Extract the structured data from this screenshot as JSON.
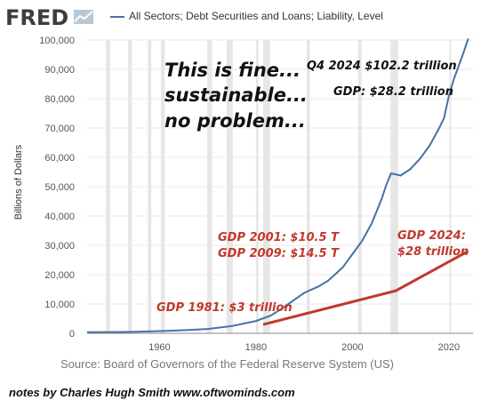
{
  "header": {
    "logo_text": "FRED",
    "legend_label": "All Sectors; Debt Securities and Loans; Liability, Level",
    "colors": {
      "debt_line": "#4572a7",
      "gdp_line": "#c0392b",
      "recession": "#e6e6e6"
    }
  },
  "source": "Source: Board of Governors of the Federal Reserve System (US)",
  "notes": "notes by Charles Hugh Smith     www.oftwominds.com",
  "annotations": {
    "main_line1": "This is fine...",
    "main_line2": "sustainable...",
    "main_line3": "no problem...",
    "q4_label": "Q4 2024   $102.2 trillion",
    "gdp_label": "GDP: $28.2 trillion",
    "gdp2001": "GDP 2001: $10.5 T",
    "gdp2009": "GDP 2009: $14.5 T",
    "gdp2024_line1": "GDP 2024:",
    "gdp2024_line2": "$28 trillion",
    "gdp1981": "GDP 1981: $3 trillion"
  },
  "chart_data": {
    "type": "line",
    "title": "",
    "xlabel": "",
    "ylabel": "Billions of Dollars",
    "xlim": [
      1945,
      2025
    ],
    "ylim": [
      0,
      100000
    ],
    "x_ticks": [
      1960,
      1980,
      2000,
      2020
    ],
    "y_ticks": [
      0,
      10000,
      20000,
      30000,
      40000,
      50000,
      60000,
      70000,
      80000,
      90000,
      100000
    ],
    "y_tick_labels": [
      "0",
      "10,000",
      "20,000",
      "30,000",
      "40,000",
      "50,000",
      "60,000",
      "70,000",
      "80,000",
      "90,000",
      "100,000"
    ],
    "recessions": [
      [
        1948.9,
        1949.8
      ],
      [
        1953.5,
        1954.3
      ],
      [
        1957.6,
        1958.3
      ],
      [
        1960.3,
        1961.1
      ],
      [
        1969.9,
        1970.9
      ],
      [
        1973.9,
        1975.2
      ],
      [
        1980.0,
        1980.5
      ],
      [
        1981.5,
        1982.9
      ],
      [
        1990.5,
        1991.2
      ],
      [
        2001.2,
        2001.9
      ],
      [
        2007.9,
        2009.5
      ],
      [
        2020.1,
        2020.4
      ]
    ],
    "series": [
      {
        "x": [
          1945,
          1950,
          1955,
          1960,
          1965,
          1970,
          1975,
          1980,
          1983,
          1985,
          1988,
          1990,
          1993,
          1995,
          1998,
          2000,
          2002,
          2004,
          2006,
          2007,
          2008,
          2009,
          2010,
          2012,
          2014,
          2016,
          2018,
          2019,
          2020,
          2021,
          2022,
          2023,
          2024
        ],
        "values": [
          350,
          420,
          550,
          750,
          1050,
          1500,
          2500,
          4200,
          6000,
          8000,
          11500,
          13800,
          16000,
          18000,
          22500,
          27000,
          31500,
          37500,
          45500,
          50500,
          54500,
          54200,
          53800,
          56000,
          59500,
          64000,
          70000,
          73500,
          81000,
          86500,
          91000,
          95500,
          100500
        ]
      },
      {
        "x": [
          1981.5,
          2009,
          2024
        ],
        "values": [
          3000,
          14500,
          28000
        ]
      }
    ]
  }
}
